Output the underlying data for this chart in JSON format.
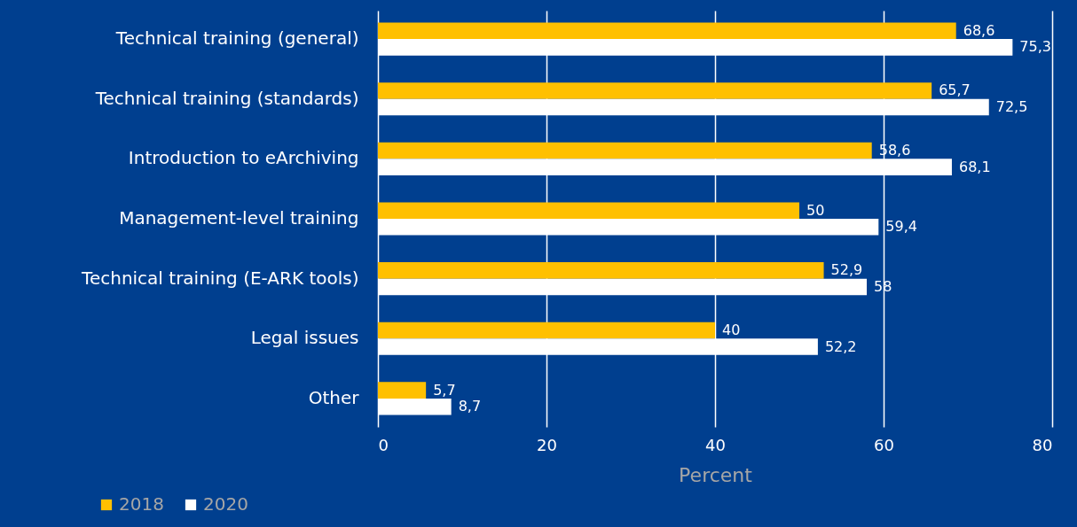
{
  "chart_data": {
    "type": "bar",
    "orientation": "horizontal",
    "xlabel": "Percent",
    "categories": [
      "Technical training (general)",
      "Technical training (standards)",
      "Introduction to eArchiving",
      "Management-level training",
      "Technical training (E-ARK tools)",
      "Legal issues",
      "Other"
    ],
    "series": [
      {
        "name": "2018",
        "color": "#ffc000",
        "values": [
          68.6,
          65.7,
          58.6,
          50,
          52.9,
          40,
          5.7
        ],
        "value_labels": [
          "68,6",
          "65,7",
          "58,6",
          "50",
          "52,9",
          "40",
          "5,7"
        ]
      },
      {
        "name": "2020",
        "color": "#ffffff",
        "values": [
          75.3,
          72.5,
          68.1,
          59.4,
          58,
          52.2,
          8.7
        ],
        "value_labels": [
          "75,3",
          "72,5",
          "68,1",
          "59,4",
          "58",
          "52,2",
          "8,7"
        ]
      }
    ],
    "xlim": [
      0,
      80
    ],
    "xticks": [
      0,
      20,
      40,
      60,
      80
    ],
    "grid": "x",
    "legend": "bottom left"
  }
}
